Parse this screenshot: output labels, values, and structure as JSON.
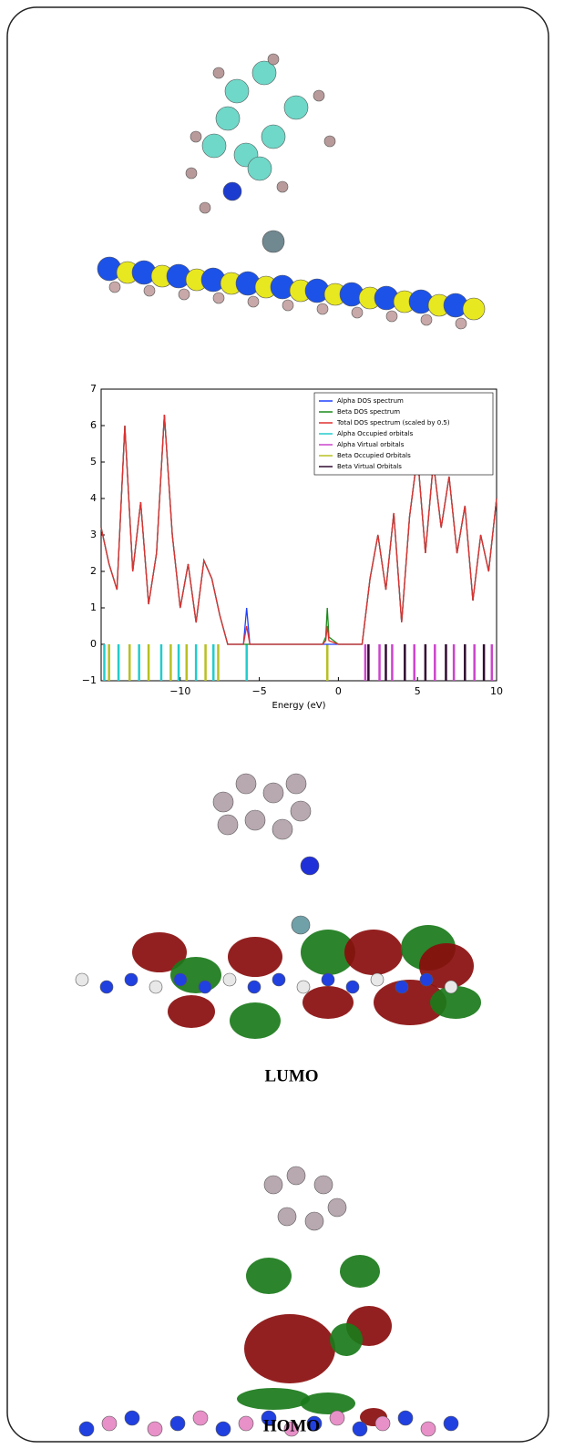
{
  "chart_data": {
    "type": "line",
    "xlabel": "Energy (eV)",
    "xlim": [
      -15,
      10
    ],
    "xticks": [
      {
        "value": -10,
        "label": "−10"
      },
      {
        "value": -5,
        "label": "−5"
      },
      0,
      5,
      10
    ],
    "ylim": [
      -1,
      7
    ],
    "yticks": [
      {
        "value": -1,
        "label": "−1"
      },
      0,
      1,
      2,
      3,
      4,
      5,
      6,
      7
    ],
    "legend": "upper right",
    "x": [
      -15,
      -14.5,
      -14,
      -13.5,
      -13,
      -12.5,
      -12,
      -11.5,
      -11,
      -10.5,
      -10,
      -9.5,
      -9,
      -8.5,
      -8,
      -7.5,
      -7,
      -6,
      -5.8,
      -5.6,
      -5,
      -4,
      -3,
      -2,
      -1,
      -0.8,
      -0.7,
      -0.6,
      0,
      1,
      1.5,
      2,
      2.5,
      3,
      3.5,
      4,
      4.5,
      5,
      5.5,
      6,
      6.5,
      7,
      7.5,
      8,
      8.5,
      9,
      9.5,
      10
    ],
    "series": [
      {
        "name": "Alpha DOS spectrum",
        "color": "#2040ff",
        "values": [
          3.2,
          2.2,
          1.5,
          6.0,
          2.0,
          3.9,
          1.1,
          2.5,
          6.3,
          3.0,
          1.0,
          2.2,
          0.6,
          2.3,
          1.8,
          0.8,
          0,
          0,
          1.0,
          0,
          0,
          0,
          0,
          0,
          0,
          0,
          0,
          0,
          0,
          0,
          0,
          1.8,
          3.0,
          1.5,
          3.6,
          0.6,
          3.5,
          5.2,
          2.5,
          5.0,
          3.2,
          4.6,
          2.5,
          3.8,
          1.2,
          3.0,
          2.0,
          4.0
        ]
      },
      {
        "name": "Beta DOS spectrum",
        "color": "#1a8a1a",
        "values": [
          3.2,
          2.2,
          1.5,
          6.0,
          2.0,
          3.9,
          1.1,
          2.5,
          6.3,
          3.0,
          1.0,
          2.2,
          0.6,
          2.3,
          1.8,
          0.8,
          0,
          0,
          0,
          0,
          0,
          0,
          0,
          0,
          0,
          0.2,
          1.0,
          0.2,
          0,
          0,
          0,
          1.8,
          3.0,
          1.5,
          3.6,
          0.6,
          3.5,
          5.2,
          2.5,
          5.0,
          3.2,
          4.6,
          2.5,
          3.8,
          1.2,
          3.0,
          2.0,
          4.0
        ]
      },
      {
        "name": "Total DOS spectrum (scaled by 0.5)",
        "color": "#e03030",
        "values": [
          3.2,
          2.2,
          1.5,
          6.0,
          2.0,
          3.9,
          1.1,
          2.5,
          6.3,
          3.0,
          1.0,
          2.2,
          0.6,
          2.3,
          1.8,
          0.8,
          0,
          0,
          0.5,
          0,
          0,
          0,
          0,
          0,
          0,
          0.1,
          0.5,
          0.1,
          0,
          0,
          0,
          1.8,
          3.0,
          1.5,
          3.6,
          0.6,
          3.5,
          5.2,
          2.5,
          5.0,
          3.2,
          4.6,
          2.5,
          3.8,
          1.2,
          3.0,
          2.0,
          4.0
        ]
      }
    ],
    "orbitals": [
      {
        "name": "Alpha Occupied orbitals",
        "color": "#22cccc",
        "energies": [
          -14.8,
          -13.9,
          -12.6,
          -11.2,
          -10.1,
          -9.0,
          -7.9,
          -5.8
        ]
      },
      {
        "name": "Alpha Virtual orbitals",
        "color": "#cc44cc",
        "energies": [
          1.7,
          2.6,
          3.4,
          4.8,
          6.1,
          7.3,
          8.6,
          9.7
        ]
      },
      {
        "name": "Beta Occupied Orbitals",
        "color": "#b8c020",
        "energies": [
          -14.5,
          -13.2,
          -12.0,
          -10.6,
          -9.6,
          -8.4,
          -7.6,
          -0.7
        ]
      },
      {
        "name": "Beta Virtual Orbitals",
        "color": "#300a30",
        "energies": [
          1.9,
          3.0,
          4.2,
          5.5,
          6.8,
          8.0,
          9.2
        ]
      }
    ]
  },
  "captions": [
    "LUMO",
    "HOMO"
  ]
}
